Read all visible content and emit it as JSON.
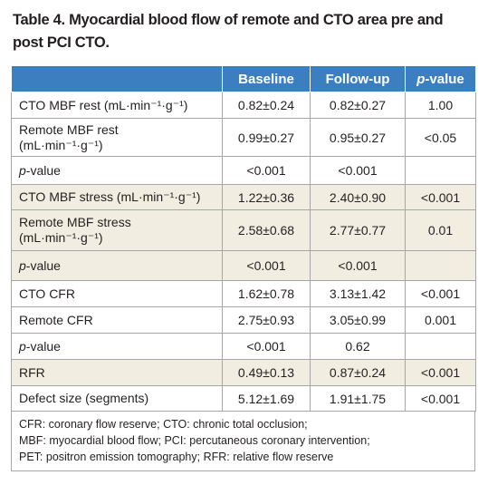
{
  "title": [
    "Table 4. Myocardial blood flow of remote and CTO area pre and",
    "post PCI CTO."
  ],
  "table": {
    "columns": [
      "Baseline",
      "Follow-up",
      "p-value"
    ],
    "rows": [
      {
        "label": [
          "CTO MBF rest (mL·min⁻¹·g⁻¹)"
        ],
        "values": [
          "0.82±0.24",
          "0.82±0.27",
          "1.00"
        ]
      },
      {
        "label": [
          "Remote MBF rest",
          "(mL·min⁻¹·g⁻¹)"
        ],
        "values": [
          "0.99±0.27",
          "0.95±0.27",
          "<0.05"
        ]
      },
      {
        "label": [
          "p-value"
        ],
        "values": [
          "<0.001",
          "<0.001"
        ]
      },
      {
        "label": [
          "CTO MBF stress (mL·min⁻¹·g⁻¹)"
        ],
        "values": [
          "1.22±0.36",
          "2.40±0.90",
          "<0.001"
        ]
      },
      {
        "label": [
          "Remote MBF stress",
          "(mL·min⁻¹·g⁻¹)"
        ],
        "values": [
          "2.58±0.68",
          "2.77±0.77",
          "0.01"
        ]
      },
      {
        "label": [
          "p-value"
        ],
        "values": [
          "<0.001",
          "<0.001"
        ]
      },
      {
        "label": [
          "CTO CFR"
        ],
        "values": [
          "1.62±0.78",
          "3.13±1.42",
          "<0.001"
        ]
      },
      {
        "label": [
          "Remote CFR"
        ],
        "values": [
          "2.75±0.93",
          "3.05±0.99",
          "0.001"
        ]
      },
      {
        "label": [
          "p-value"
        ],
        "values": [
          "<0.001",
          "0.62"
        ]
      },
      {
        "label": [
          "RFR"
        ],
        "values": [
          "0.49±0.13",
          "0.87±0.24",
          "<0.001"
        ]
      },
      {
        "label": [
          "Defect size (segments)"
        ],
        "values": [
          "5.12±1.69",
          "1.91±1.75",
          "<0.001"
        ]
      }
    ]
  },
  "footnote": [
    "CFR: coronary flow reserve; CTO: chronic total occlusion;",
    "MBF: myocardial blood flow; PCI: percutaneous coronary intervention;",
    "PET: positron emission tomography; RFR: relative flow reserve"
  ]
}
